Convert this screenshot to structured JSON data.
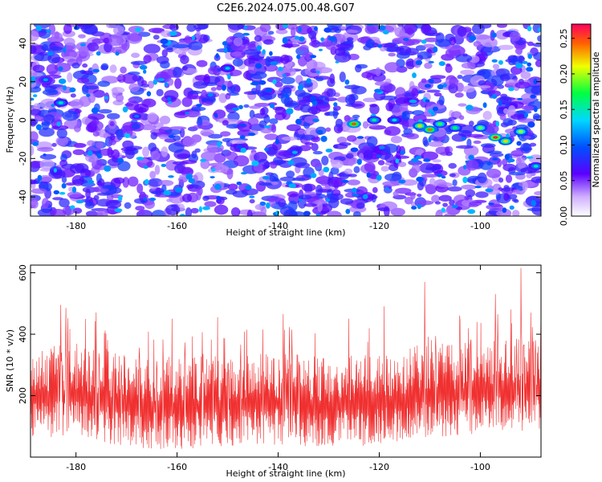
{
  "title": "C2E6.2024.075.00.48.G07",
  "colors": {
    "snr_line": "#f03030",
    "heatmap_bg": "#ffffff",
    "colormap": [
      "#ffffff",
      "#5a00ff",
      "#0060ff",
      "#00d8ff",
      "#00ff40",
      "#f0ff00",
      "#ff8000",
      "#ff0060"
    ]
  },
  "chart_data": [
    {
      "type": "heatmap",
      "name": "spectrogram",
      "xlabel": "Height of straight line (km)",
      "ylabel": "Frequency (Hz)",
      "xlim": [
        -189,
        -88
      ],
      "ylim": [
        -50,
        50
      ],
      "xticks": [
        -180,
        -160,
        -140,
        -120,
        -100
      ],
      "yticks": [
        -40,
        -20,
        0,
        20,
        40
      ],
      "colorbar": {
        "label": "Normalized spectral amplitude",
        "range": [
          0,
          0.27
        ],
        "ticks": [
          "0.00",
          "0.05",
          "0.10",
          "0.15",
          "0.20",
          "0.25"
        ]
      },
      "features": [
        {
          "x": -125,
          "y": -2,
          "amplitude": 0.25
        },
        {
          "x": -121,
          "y": 0,
          "amplitude": 0.16
        },
        {
          "x": -117,
          "y": 0,
          "amplitude": 0.14
        },
        {
          "x": -112,
          "y": -3,
          "amplitude": 0.22
        },
        {
          "x": -110,
          "y": -5,
          "amplitude": 0.24
        },
        {
          "x": -108,
          "y": -2,
          "amplitude": 0.18
        },
        {
          "x": -105,
          "y": -4,
          "amplitude": 0.17
        },
        {
          "x": -100,
          "y": -4,
          "amplitude": 0.19
        },
        {
          "x": -97,
          "y": -9,
          "amplitude": 0.26
        },
        {
          "x": -95,
          "y": -11,
          "amplitude": 0.22
        },
        {
          "x": -92,
          "y": -6,
          "amplitude": 0.2
        },
        {
          "x": -89,
          "y": -24,
          "amplitude": 0.15
        },
        {
          "x": -183,
          "y": 9,
          "amplitude": 0.15
        },
        {
          "x": -150,
          "y": 27,
          "amplitude": 0.13
        },
        {
          "x": -186,
          "y": 21,
          "amplitude": 0.12
        },
        {
          "x": -168,
          "y": 2,
          "amplitude": 0.11
        }
      ]
    },
    {
      "type": "line",
      "name": "snr",
      "xlabel": "Height of straight line (km)",
      "ylabel": "SNR (10 * v/v)",
      "xlim": [
        -189,
        -88
      ],
      "ylim": [
        0,
        625
      ],
      "xticks": [
        -180,
        -160,
        -140,
        -120,
        -100
      ],
      "yticks": [
        200,
        400,
        600
      ],
      "baseline": [
        [
          -189,
          165
        ],
        [
          -180,
          180
        ],
        [
          -170,
          140
        ],
        [
          -160,
          135
        ],
        [
          -150,
          145
        ],
        [
          -140,
          150
        ],
        [
          -130,
          140
        ],
        [
          -120,
          150
        ],
        [
          -112,
          175
        ],
        [
          -105,
          180
        ],
        [
          -100,
          185
        ],
        [
          -94,
          200
        ],
        [
          -88,
          190
        ]
      ],
      "peaks": [
        [
          -183,
          495
        ],
        [
          -182,
          485
        ],
        [
          -176,
          470
        ],
        [
          -161,
          450
        ],
        [
          -152,
          455
        ],
        [
          -139,
          465
        ],
        [
          -126,
          450
        ],
        [
          -119,
          490
        ],
        [
          -111,
          570
        ],
        [
          -104,
          445
        ],
        [
          -97,
          530
        ],
        [
          -94,
          480
        ],
        [
          -92,
          615
        ],
        [
          -90,
          470
        ],
        [
          -88,
          485
        ]
      ]
    }
  ]
}
